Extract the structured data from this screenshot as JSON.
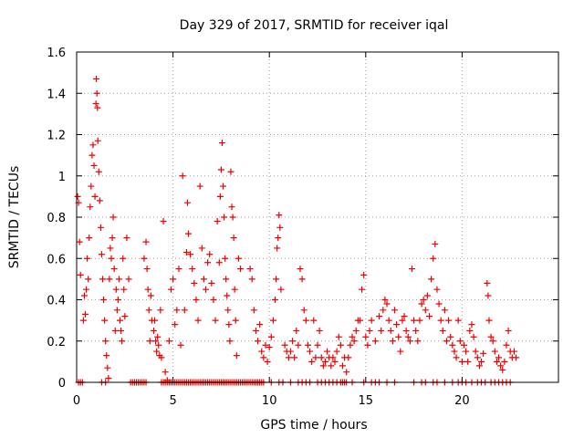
{
  "chart_data": {
    "type": "scatter",
    "title": "Day 329 of 2017, SRMTID for receiver iqal",
    "xlabel": "GPS time / hours",
    "ylabel": "SRMTID / TECUs",
    "xlim": [
      0,
      25
    ],
    "ylim": [
      0,
      1.6
    ],
    "xticks": [
      0,
      5,
      10,
      15,
      20
    ],
    "xtick_labels": [
      "0",
      "5",
      "10",
      "15",
      "20"
    ],
    "yticks": [
      0,
      0.2,
      0.4,
      0.6,
      0.8,
      1,
      1.2,
      1.4,
      1.6
    ],
    "ytick_labels": [
      "0",
      "0.2",
      "0.4",
      "0.6",
      "0.8",
      "1",
      "1.2",
      "1.4",
      "1.6"
    ],
    "grid": true,
    "marker": "+",
    "color": "#ee0000",
    "series": [
      {
        "name": "SRMTID",
        "points": [
          [
            0.05,
            0.9
          ],
          [
            0.1,
            0.87
          ],
          [
            0.15,
            0.68
          ],
          [
            0.2,
            0.52
          ],
          [
            0.35,
            0.3
          ],
          [
            0.4,
            0.42
          ],
          [
            0.45,
            0.33
          ],
          [
            0.5,
            0.45
          ],
          [
            0.55,
            0.6
          ],
          [
            0.6,
            0.5
          ],
          [
            0.65,
            0.7
          ],
          [
            0.7,
            0.85
          ],
          [
            0.75,
            0.95
          ],
          [
            0.8,
            1.1
          ],
          [
            0.85,
            1.15
          ],
          [
            0.9,
            1.05
          ],
          [
            0.95,
            0.9
          ],
          [
            1.0,
            1.35
          ],
          [
            1.02,
            1.47
          ],
          [
            1.05,
            1.4
          ],
          [
            1.08,
            1.33
          ],
          [
            1.1,
            1.17
          ],
          [
            1.15,
            1.02
          ],
          [
            1.2,
            0.88
          ],
          [
            1.25,
            0.75
          ],
          [
            1.3,
            0.62
          ],
          [
            1.35,
            0.5
          ],
          [
            1.4,
            0.4
          ],
          [
            1.45,
            0.3
          ],
          [
            1.5,
            0.2
          ],
          [
            1.55,
            0.13
          ],
          [
            1.6,
            0.07
          ],
          [
            1.65,
            0.02
          ],
          [
            1.7,
            0.5
          ],
          [
            1.75,
            0.65
          ],
          [
            1.8,
            0.6
          ],
          [
            1.85,
            0.7
          ],
          [
            1.9,
            0.8
          ],
          [
            1.95,
            0.55
          ],
          [
            2.0,
            0.25
          ],
          [
            2.05,
            0.45
          ],
          [
            2.1,
            0.35
          ],
          [
            2.15,
            0.4
          ],
          [
            2.2,
            0.5
          ],
          [
            2.25,
            0.3
          ],
          [
            2.3,
            0.25
          ],
          [
            2.35,
            0.2
          ],
          [
            2.4,
            0.6
          ],
          [
            2.45,
            0.45
          ],
          [
            2.5,
            0.32
          ],
          [
            2.6,
            0.7
          ],
          [
            2.7,
            0.5
          ],
          [
            3.5,
            0.6
          ],
          [
            3.6,
            0.68
          ],
          [
            3.65,
            0.55
          ],
          [
            3.7,
            0.45
          ],
          [
            3.75,
            0.35
          ],
          [
            3.8,
            0.2
          ],
          [
            3.85,
            0.42
          ],
          [
            3.9,
            0.3
          ],
          [
            4.0,
            0.25
          ],
          [
            4.05,
            0.3
          ],
          [
            4.1,
            0.2
          ],
          [
            4.15,
            0.15
          ],
          [
            4.2,
            0.22
          ],
          [
            4.25,
            0.18
          ],
          [
            4.3,
            0.13
          ],
          [
            4.35,
            0.35
          ],
          [
            4.4,
            0.12
          ],
          [
            4.5,
            0.78
          ],
          [
            4.6,
            0.05
          ],
          [
            4.7,
            0.01
          ],
          [
            4.8,
            0.2
          ],
          [
            4.9,
            0.45
          ],
          [
            5.0,
            0.5
          ],
          [
            5.1,
            0.28
          ],
          [
            5.2,
            0.35
          ],
          [
            5.3,
            0.55
          ],
          [
            5.4,
            0.18
          ],
          [
            5.5,
            1.0
          ],
          [
            5.6,
            0.35
          ],
          [
            5.7,
            0.63
          ],
          [
            5.75,
            0.87
          ],
          [
            5.8,
            0.72
          ],
          [
            5.9,
            0.62
          ],
          [
            6.0,
            0.55
          ],
          [
            6.1,
            0.48
          ],
          [
            6.2,
            0.4
          ],
          [
            6.3,
            0.3
          ],
          [
            6.4,
            0.95
          ],
          [
            6.5,
            0.65
          ],
          [
            6.6,
            0.5
          ],
          [
            6.7,
            0.45
          ],
          [
            6.8,
            0.58
          ],
          [
            6.9,
            0.62
          ],
          [
            7.0,
            0.48
          ],
          [
            7.1,
            0.4
          ],
          [
            7.2,
            0.3
          ],
          [
            7.3,
            0.78
          ],
          [
            7.4,
            0.58
          ],
          [
            7.45,
            0.9
          ],
          [
            7.5,
            1.03
          ],
          [
            7.55,
            1.16
          ],
          [
            7.6,
            0.95
          ],
          [
            7.65,
            0.8
          ],
          [
            7.7,
            0.6
          ],
          [
            7.75,
            0.5
          ],
          [
            7.8,
            0.42
          ],
          [
            7.85,
            0.35
          ],
          [
            7.9,
            0.28
          ],
          [
            7.95,
            0.2
          ],
          [
            8.0,
            1.02
          ],
          [
            8.05,
            0.85
          ],
          [
            8.1,
            0.8
          ],
          [
            8.15,
            0.7
          ],
          [
            8.2,
            0.45
          ],
          [
            8.25,
            0.3
          ],
          [
            8.3,
            0.13
          ],
          [
            8.4,
            0.6
          ],
          [
            8.5,
            0.55
          ],
          [
            9.0,
            0.55
          ],
          [
            9.1,
            0.5
          ],
          [
            9.2,
            0.35
          ],
          [
            9.3,
            0.25
          ],
          [
            9.4,
            0.2
          ],
          [
            9.5,
            0.28
          ],
          [
            9.6,
            0.15
          ],
          [
            9.7,
            0.12
          ],
          [
            9.8,
            0.18
          ],
          [
            9.9,
            0.1
          ],
          [
            10.0,
            0.17
          ],
          [
            10.1,
            0.22
          ],
          [
            10.2,
            0.3
          ],
          [
            10.3,
            0.4
          ],
          [
            10.35,
            0.5
          ],
          [
            10.4,
            0.65
          ],
          [
            10.45,
            0.7
          ],
          [
            10.5,
            0.81
          ],
          [
            10.55,
            0.75
          ],
          [
            10.6,
            0.45
          ],
          [
            10.8,
            0.18
          ],
          [
            10.9,
            0.15
          ],
          [
            11.0,
            0.12
          ],
          [
            11.1,
            0.15
          ],
          [
            11.2,
            0.2
          ],
          [
            11.3,
            0.12
          ],
          [
            11.4,
            0.25
          ],
          [
            11.5,
            0.18
          ],
          [
            11.6,
            0.55
          ],
          [
            11.7,
            0.5
          ],
          [
            11.8,
            0.35
          ],
          [
            11.9,
            0.3
          ],
          [
            12.0,
            0.18
          ],
          [
            12.1,
            0.15
          ],
          [
            12.2,
            0.1
          ],
          [
            12.3,
            0.3
          ],
          [
            12.4,
            0.12
          ],
          [
            12.5,
            0.18
          ],
          [
            12.6,
            0.25
          ],
          [
            12.7,
            0.12
          ],
          [
            12.8,
            0.08
          ],
          [
            12.9,
            0.1
          ],
          [
            13.0,
            0.15
          ],
          [
            13.1,
            0.12
          ],
          [
            13.2,
            0.08
          ],
          [
            13.3,
            0.12
          ],
          [
            13.4,
            0.1
          ],
          [
            13.5,
            0.15
          ],
          [
            13.6,
            0.22
          ],
          [
            13.7,
            0.18
          ],
          [
            13.8,
            0.08
          ],
          [
            13.9,
            0.12
          ],
          [
            14.0,
            0.05
          ],
          [
            14.1,
            0.12
          ],
          [
            14.2,
            0.18
          ],
          [
            14.3,
            0.22
          ],
          [
            14.4,
            0.2
          ],
          [
            14.5,
            0.25
          ],
          [
            14.6,
            0.3
          ],
          [
            14.7,
            0.3
          ],
          [
            14.8,
            0.45
          ],
          [
            14.9,
            0.52
          ],
          [
            15.0,
            0.22
          ],
          [
            15.1,
            0.18
          ],
          [
            15.2,
            0.25
          ],
          [
            15.3,
            0.3
          ],
          [
            15.5,
            0.2
          ],
          [
            15.7,
            0.32
          ],
          [
            15.8,
            0.25
          ],
          [
            15.9,
            0.35
          ],
          [
            16.0,
            0.4
          ],
          [
            16.1,
            0.38
          ],
          [
            16.2,
            0.3
          ],
          [
            16.3,
            0.25
          ],
          [
            16.4,
            0.2
          ],
          [
            16.5,
            0.35
          ],
          [
            16.6,
            0.28
          ],
          [
            16.7,
            0.22
          ],
          [
            16.8,
            0.15
          ],
          [
            16.9,
            0.3
          ],
          [
            17.0,
            0.32
          ],
          [
            17.1,
            0.25
          ],
          [
            17.2,
            0.22
          ],
          [
            17.3,
            0.2
          ],
          [
            17.4,
            0.55
          ],
          [
            17.5,
            0.3
          ],
          [
            17.6,
            0.25
          ],
          [
            17.7,
            0.2
          ],
          [
            17.8,
            0.3
          ],
          [
            17.9,
            0.38
          ],
          [
            18.0,
            0.4
          ],
          [
            18.1,
            0.35
          ],
          [
            18.2,
            0.42
          ],
          [
            18.3,
            0.32
          ],
          [
            18.4,
            0.5
          ],
          [
            18.5,
            0.6
          ],
          [
            18.6,
            0.67
          ],
          [
            18.7,
            0.45
          ],
          [
            18.8,
            0.38
          ],
          [
            18.9,
            0.3
          ],
          [
            19.0,
            0.25
          ],
          [
            19.1,
            0.35
          ],
          [
            19.2,
            0.2
          ],
          [
            19.3,
            0.3
          ],
          [
            19.4,
            0.22
          ],
          [
            19.5,
            0.18
          ],
          [
            19.6,
            0.15
          ],
          [
            19.7,
            0.12
          ],
          [
            19.8,
            0.3
          ],
          [
            19.9,
            0.2
          ],
          [
            20.0,
            0.1
          ],
          [
            20.1,
            0.18
          ],
          [
            20.2,
            0.15
          ],
          [
            20.3,
            0.1
          ],
          [
            20.4,
            0.25
          ],
          [
            20.5,
            0.28
          ],
          [
            20.6,
            0.22
          ],
          [
            20.7,
            0.15
          ],
          [
            20.8,
            0.12
          ],
          [
            20.9,
            0.08
          ],
          [
            21.0,
            0.1
          ],
          [
            21.1,
            0.14
          ],
          [
            21.3,
            0.48
          ],
          [
            21.35,
            0.42
          ],
          [
            21.4,
            0.3
          ],
          [
            21.5,
            0.22
          ],
          [
            21.6,
            0.2
          ],
          [
            21.7,
            0.15
          ],
          [
            21.8,
            0.1
          ],
          [
            21.9,
            0.12
          ],
          [
            22.0,
            0.08
          ],
          [
            22.1,
            0.06
          ],
          [
            22.2,
            0.1
          ],
          [
            22.3,
            0.18
          ],
          [
            22.4,
            0.25
          ],
          [
            22.5,
            0.15
          ],
          [
            22.6,
            0.12
          ],
          [
            22.7,
            0.15
          ],
          [
            22.8,
            0.12
          ]
        ],
        "zero_line_x": [
          0.1,
          0.2,
          0.3,
          1.3,
          1.5,
          2.8,
          2.9,
          3.0,
          3.1,
          3.2,
          3.3,
          3.4,
          3.5,
          3.6,
          4.4,
          4.5,
          4.6,
          4.7,
          4.8,
          4.9,
          5.0,
          5.1,
          5.2,
          5.3,
          5.4,
          5.5,
          5.6,
          5.7,
          5.8,
          5.9,
          6.0,
          6.1,
          6.2,
          6.3,
          6.4,
          6.5,
          6.6,
          6.7,
          6.8,
          6.9,
          7.0,
          7.1,
          7.2,
          7.3,
          7.4,
          7.5,
          7.6,
          7.7,
          7.8,
          7.9,
          8.0,
          8.1,
          8.2,
          8.3,
          8.4,
          8.5,
          8.6,
          8.7,
          8.8,
          8.9,
          9.0,
          9.1,
          9.2,
          9.3,
          9.4,
          9.5,
          9.6,
          9.7,
          10.1,
          10.5,
          10.7,
          11.1,
          11.5,
          11.7,
          11.9,
          12.1,
          12.5,
          12.7,
          12.9,
          13.1,
          13.3,
          13.5,
          13.7,
          13.8,
          13.9,
          14.0,
          14.3,
          14.9,
          15.3,
          15.5,
          15.7,
          16.1,
          16.5,
          17.5,
          17.9,
          18.1,
          18.5,
          18.7,
          19.1,
          19.5,
          19.8,
          20.0,
          20.2,
          20.5,
          20.8,
          21.0,
          21.2,
          21.5,
          21.7,
          21.9,
          22.1,
          22.3,
          22.5
        ]
      }
    ]
  }
}
